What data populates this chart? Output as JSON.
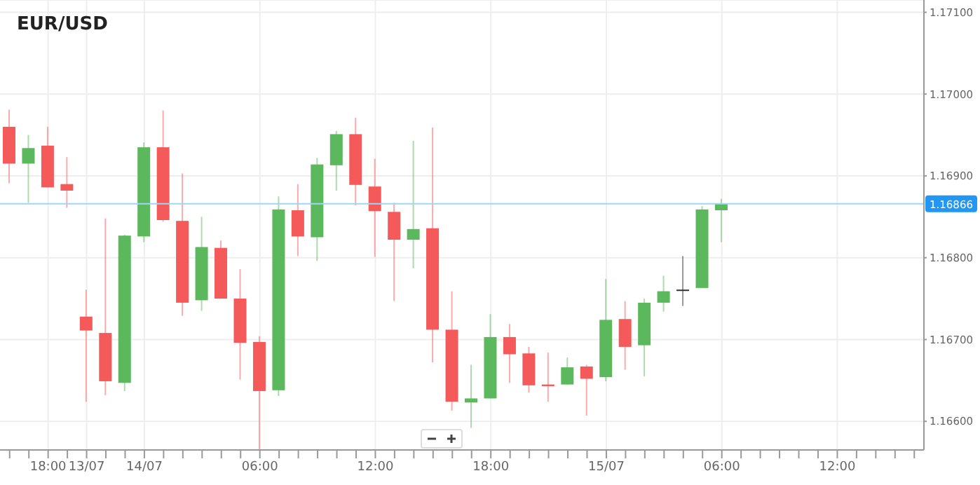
{
  "chart_data": {
    "type": "candlestick",
    "title": "EUR/USD",
    "categories": [
      null,
      null,
      "18:00",
      null,
      "13/07",
      null,
      null,
      "14/07",
      null,
      null,
      null,
      null,
      null,
      "06:00",
      null,
      null,
      null,
      null,
      null,
      "12:00",
      null,
      null,
      null,
      null,
      null,
      "18:00",
      null,
      null,
      null,
      null,
      null,
      "15/07",
      null,
      null,
      null,
      null,
      null,
      "06:00",
      null,
      null,
      null,
      null,
      null,
      "12:00",
      null,
      null,
      null,
      null
    ],
    "ohlc": [
      [
        1.1696,
        1.16981,
        1.16891,
        1.16915
      ],
      [
        1.16915,
        1.1695,
        1.16867,
        1.16934
      ],
      [
        1.16937,
        1.1696,
        1.16886,
        1.16886
      ],
      [
        1.1689,
        1.16923,
        1.16861,
        1.16882
      ],
      [
        1.16728,
        1.16761,
        1.16624,
        1.16711
      ],
      [
        1.16708,
        1.16848,
        1.16632,
        1.16649
      ],
      [
        1.16647,
        1.16828,
        1.16637,
        1.16827
      ],
      [
        1.16826,
        1.16941,
        1.16819,
        1.16935
      ],
      [
        1.16935,
        1.1698,
        1.16844,
        1.16846
      ],
      [
        1.16845,
        1.16903,
        1.16729,
        1.16745
      ],
      [
        1.16748,
        1.1685,
        1.16735,
        1.16813
      ],
      [
        1.16812,
        1.16821,
        1.1675,
        1.1675
      ],
      [
        1.1675,
        1.16786,
        1.16651,
        1.16696
      ],
      [
        1.16697,
        1.16704,
        1.16566,
        1.16637
      ],
      [
        1.16638,
        1.16875,
        1.16631,
        1.16859
      ],
      [
        1.16858,
        1.1689,
        1.16802,
        1.16826
      ],
      [
        1.16825,
        1.16922,
        1.16796,
        1.16914
      ],
      [
        1.16913,
        1.16955,
        1.16882,
        1.16951
      ],
      [
        1.16951,
        1.16971,
        1.16864,
        1.16889
      ],
      [
        1.16887,
        1.16921,
        1.16801,
        1.16857
      ],
      [
        1.16856,
        1.16867,
        1.16747,
        1.16822
      ],
      [
        1.16822,
        1.16943,
        1.16787,
        1.16835
      ],
      [
        1.16836,
        1.16959,
        1.16672,
        1.16712
      ],
      [
        1.16712,
        1.16759,
        1.16613,
        1.16624
      ],
      [
        1.16623,
        1.16669,
        1.16592,
        1.16628
      ],
      [
        1.16628,
        1.16731,
        1.16628,
        1.16703
      ],
      [
        1.16703,
        1.16719,
        1.16647,
        1.16682
      ],
      [
        1.16683,
        1.16691,
        1.16635,
        1.16644
      ],
      [
        1.16645,
        1.16684,
        1.16624,
        1.16643
      ],
      [
        1.16645,
        1.16678,
        1.16645,
        1.16666
      ],
      [
        1.16667,
        1.16669,
        1.16607,
        1.16652
      ],
      [
        1.16654,
        1.16774,
        1.16649,
        1.16724
      ],
      [
        1.16725,
        1.16747,
        1.16663,
        1.16691
      ],
      [
        1.16693,
        1.1675,
        1.16655,
        1.16745
      ],
      [
        1.16745,
        1.16778,
        1.16734,
        1.16759
      ],
      [
        1.16761,
        1.16802,
        1.16741,
        1.16761
      ],
      [
        1.16763,
        1.16863,
        1.16763,
        1.16859
      ],
      [
        1.16858,
        1.16872,
        1.16819,
        1.16866
      ],
      null,
      null,
      null,
      null,
      null,
      null,
      null,
      null,
      null,
      null
    ],
    "colors": [
      "#f55a5a",
      "#5cb85c",
      "#f55a5a",
      "#f55a5a",
      "#f55a5a",
      "#f55a5a",
      "#5cb85c",
      "#5cb85c",
      "#f55a5a",
      "#f55a5a",
      "#5cb85c",
      "#f55a5a",
      "#f55a5a",
      "#f55a5a",
      "#5cb85c",
      "#f55a5a",
      "#5cb85c",
      "#5cb85c",
      "#f55a5a",
      "#f55a5a",
      "#f55a5a",
      "#5cb85c",
      "#f55a5a",
      "#f55a5a",
      "#5cb85c",
      "#5cb85c",
      "#f55a5a",
      "#f55a5a",
      "#f55a5a",
      "#5cb85c",
      "#f55a5a",
      "#5cb85c",
      "#f55a5a",
      "#5cb85c",
      "#5cb85c",
      "#333333",
      "#5cb85c",
      "#5cb85c",
      null,
      null,
      null,
      null,
      null,
      null,
      null,
      null,
      null,
      null
    ],
    "ylim": [
      1.16565,
      1.17115
    ],
    "yticks": [
      {
        "value": 1.166,
        "label": "1.16600"
      },
      {
        "value": 1.167,
        "label": "1.16700"
      },
      {
        "value": 1.168,
        "label": "1.16800"
      },
      {
        "value": 1.169,
        "label": "1.16900"
      },
      {
        "value": 1.17,
        "label": "1.17000"
      },
      {
        "value": 1.171,
        "label": "1.17100"
      }
    ],
    "ref_lines": [
      {
        "axis": "y",
        "value": 1.16866,
        "label": "1.16866",
        "color": "#9fd6f5"
      }
    ],
    "grid": true
  }
}
